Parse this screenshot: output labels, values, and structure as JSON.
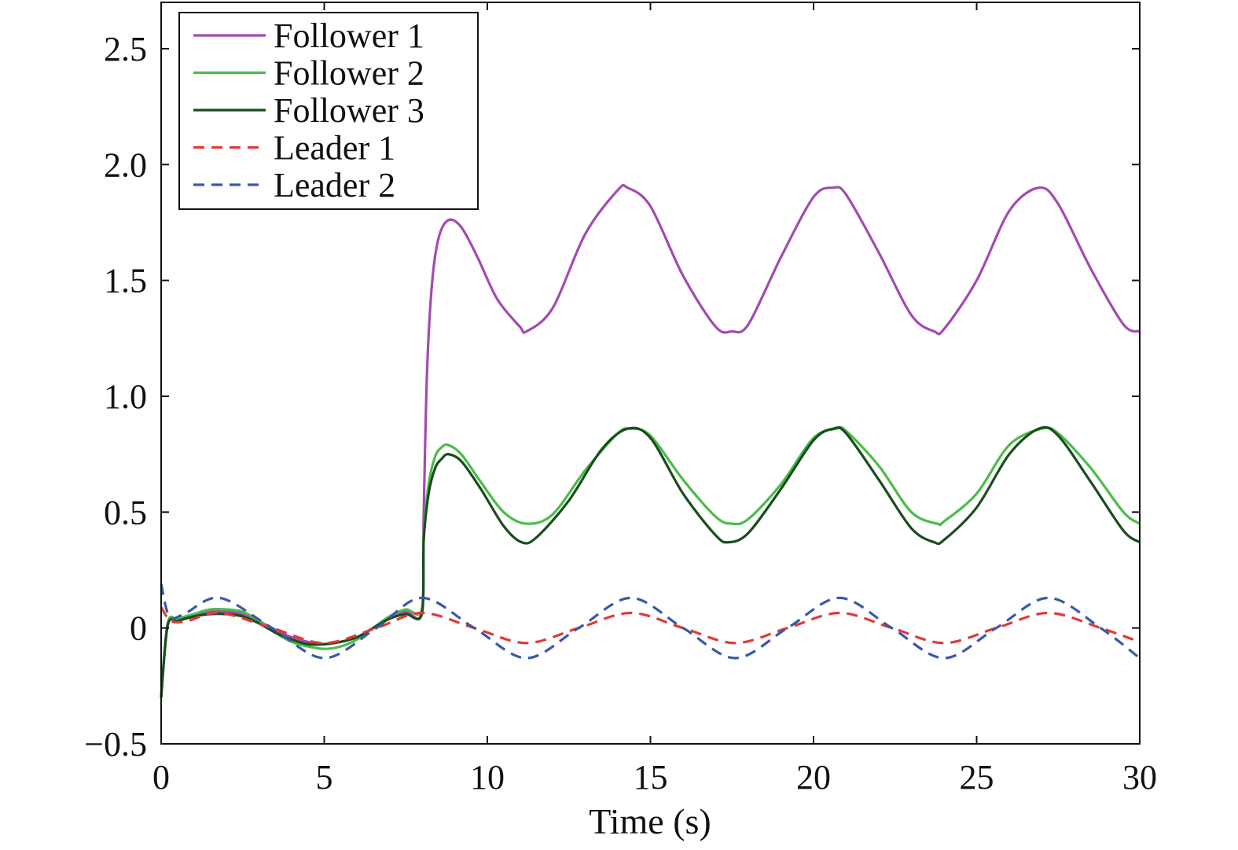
{
  "chart_data": {
    "type": "line",
    "title": "",
    "xlabel": "Time (s)",
    "ylabel": "",
    "xlim": [
      0,
      30
    ],
    "ylim": [
      -0.5,
      2.7
    ],
    "xticks": [
      0,
      5,
      10,
      15,
      20,
      25,
      30
    ],
    "xtick_labels": [
      "0",
      "5",
      "10",
      "15",
      "20",
      "25",
      "30"
    ],
    "yticks": [
      -0.5,
      0,
      0.5,
      1.0,
      1.5,
      2.0,
      2.5
    ],
    "ytick_labels": [
      "−0.5",
      "0",
      "0.5",
      "1.0",
      "1.5",
      "2.0",
      "2.5"
    ],
    "grid": false,
    "legend_position": "top-left",
    "series": [
      {
        "name": "Follower 1",
        "color": "#a24bb0",
        "dash": "solid",
        "x": [
          0,
          0.2,
          0.5,
          1,
          1.5,
          2,
          2.5,
          3,
          3.5,
          4,
          4.5,
          5,
          5.5,
          6,
          6.5,
          7,
          7.5,
          7.99,
          8.05,
          8.15,
          8.3,
          8.5,
          8.8,
          9.2,
          9.7,
          10.3,
          11,
          11.2,
          12,
          13,
          14,
          14.3,
          15,
          16,
          17,
          17.5,
          18,
          19,
          20,
          20.6,
          21,
          22,
          23,
          23.7,
          24,
          25,
          26,
          26.9,
          27.5,
          28.5,
          29.5,
          30
        ],
        "y": [
          -0.3,
          0.02,
          0.03,
          0.05,
          0.07,
          0.07,
          0.06,
          0.03,
          -0.01,
          -0.04,
          -0.06,
          -0.07,
          -0.06,
          -0.04,
          0.0,
          0.04,
          0.07,
          0.07,
          0.5,
          1.1,
          1.48,
          1.68,
          1.76,
          1.73,
          1.6,
          1.42,
          1.3,
          1.28,
          1.38,
          1.7,
          1.89,
          1.9,
          1.82,
          1.52,
          1.3,
          1.28,
          1.31,
          1.6,
          1.86,
          1.9,
          1.87,
          1.62,
          1.35,
          1.28,
          1.29,
          1.5,
          1.8,
          1.9,
          1.83,
          1.55,
          1.31,
          1.28
        ]
      },
      {
        "name": "Follower 2",
        "color": "#4dbb4a",
        "dash": "solid",
        "x": [
          0,
          0.2,
          0.5,
          1,
          1.5,
          2,
          2.5,
          3,
          3.5,
          4,
          4.5,
          5,
          5.5,
          6,
          6.5,
          7,
          7.5,
          7.99,
          8.05,
          8.2,
          8.4,
          8.6,
          8.8,
          9.2,
          9.8,
          10.5,
          11.2,
          12,
          13,
          14,
          14.4,
          15,
          16,
          17,
          17.5,
          18,
          19,
          20,
          20.7,
          21,
          22,
          23,
          23.8,
          24,
          25,
          26,
          27,
          27.5,
          28.5,
          29.5,
          30
        ],
        "y": [
          -0.3,
          0.02,
          0.04,
          0.06,
          0.08,
          0.08,
          0.07,
          0.03,
          -0.02,
          -0.06,
          -0.08,
          -0.09,
          -0.08,
          -0.05,
          0.0,
          0.05,
          0.08,
          0.08,
          0.4,
          0.62,
          0.74,
          0.78,
          0.79,
          0.75,
          0.63,
          0.5,
          0.45,
          0.49,
          0.68,
          0.84,
          0.86,
          0.83,
          0.64,
          0.48,
          0.45,
          0.47,
          0.62,
          0.82,
          0.86,
          0.85,
          0.7,
          0.5,
          0.45,
          0.46,
          0.58,
          0.79,
          0.86,
          0.84,
          0.69,
          0.5,
          0.45
        ]
      },
      {
        "name": "Follower 3",
        "color": "#1a4d1e",
        "dash": "solid",
        "x": [
          0,
          0.2,
          0.5,
          1,
          1.5,
          2,
          2.5,
          3,
          3.5,
          4,
          4.5,
          5,
          5.5,
          6,
          6.5,
          7,
          7.5,
          7.99,
          8.05,
          8.2,
          8.4,
          8.6,
          8.8,
          9.2,
          9.8,
          10.5,
          11.05,
          11.5,
          12.5,
          13.5,
          14.3,
          15,
          16,
          17,
          17.4,
          18,
          19,
          20,
          20.6,
          21,
          22,
          23,
          23.7,
          24,
          25,
          26,
          26.9,
          27.5,
          28.5,
          29.5,
          30
        ],
        "y": [
          -0.3,
          0.01,
          0.03,
          0.05,
          0.06,
          0.06,
          0.05,
          0.02,
          -0.02,
          -0.05,
          -0.07,
          -0.07,
          -0.06,
          -0.04,
          0.0,
          0.04,
          0.06,
          0.06,
          0.38,
          0.58,
          0.69,
          0.73,
          0.75,
          0.72,
          0.6,
          0.44,
          0.37,
          0.39,
          0.55,
          0.77,
          0.86,
          0.82,
          0.58,
          0.4,
          0.37,
          0.41,
          0.6,
          0.81,
          0.86,
          0.84,
          0.64,
          0.43,
          0.37,
          0.38,
          0.52,
          0.75,
          0.86,
          0.83,
          0.63,
          0.42,
          0.37
        ]
      },
      {
        "name": "Leader 1",
        "color": "#e03a3a",
        "dash": "dashed",
        "x": [
          0,
          0.3,
          0.8,
          1.8,
          3.4,
          5.0,
          6.6,
          8.0,
          9.6,
          11.2,
          12.8,
          14.4,
          16.0,
          17.6,
          19.2,
          20.8,
          22.4,
          24.0,
          25.6,
          27.2,
          28.8,
          30
        ],
        "y": [
          0.09,
          0.03,
          0.03,
          0.065,
          0.0,
          -0.065,
          0.0,
          0.065,
          0.0,
          -0.065,
          0.0,
          0.065,
          0.0,
          -0.065,
          0.0,
          0.065,
          0.0,
          -0.065,
          0.0,
          0.065,
          0.0,
          -0.06
        ]
      },
      {
        "name": "Leader 2",
        "color": "#3a58a8",
        "dash": "dashed",
        "x": [
          0,
          0.25,
          0.7,
          1.8,
          3.4,
          5.0,
          6.6,
          8.0,
          9.6,
          11.2,
          12.8,
          14.4,
          16.0,
          17.6,
          19.2,
          20.8,
          22.4,
          24.0,
          25.6,
          27.2,
          28.8,
          30
        ],
        "y": [
          0.19,
          0.05,
          0.06,
          0.13,
          0.0,
          -0.13,
          0.0,
          0.13,
          0.0,
          -0.13,
          0.0,
          0.13,
          0.0,
          -0.13,
          0.0,
          0.13,
          0.0,
          -0.13,
          0.0,
          0.13,
          0.0,
          -0.13
        ]
      }
    ]
  }
}
